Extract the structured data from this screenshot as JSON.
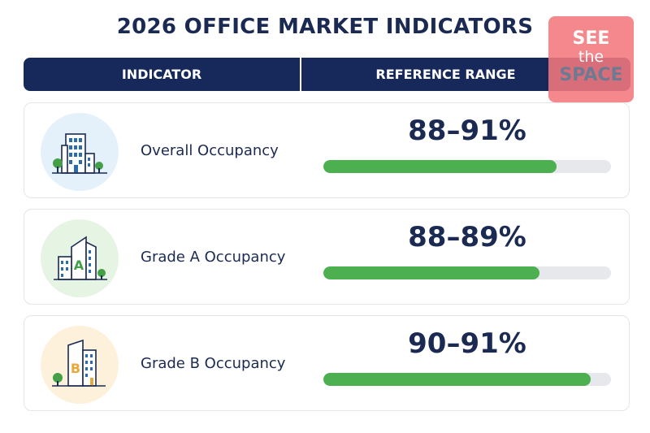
{
  "title": "2026 OFFICE MARKET INDICATORS",
  "header": {
    "indicator": "INDICATOR",
    "reference_range": "REFERENCE RANGE"
  },
  "logo": {
    "line1": "SEE",
    "line2": "the",
    "line3": "SPACE"
  },
  "rows": [
    {
      "label": "Overall Occupancy",
      "range": "88–91%",
      "bar_fraction": 0.81,
      "icon": "office-building-icon",
      "icon_bg": "#e4f1fb",
      "icon_letter": ""
    },
    {
      "label": "Grade A Occupancy",
      "range": "88–89%",
      "bar_fraction": 0.75,
      "icon": "grade-a-building-icon",
      "icon_bg": "#e6f4e4",
      "icon_letter": "A"
    },
    {
      "label": "Grade B Occupancy",
      "range": "90–91%",
      "bar_fraction": 0.93,
      "icon": "grade-b-building-icon",
      "icon_bg": "#fdf1dc",
      "icon_letter": "B"
    }
  ],
  "colors": {
    "header_bg": "#17295a",
    "text_dark": "#1b2a52",
    "bar_fill": "#4caf50",
    "bar_track": "#e6e8ec",
    "logo_bg": "#f4787d"
  }
}
